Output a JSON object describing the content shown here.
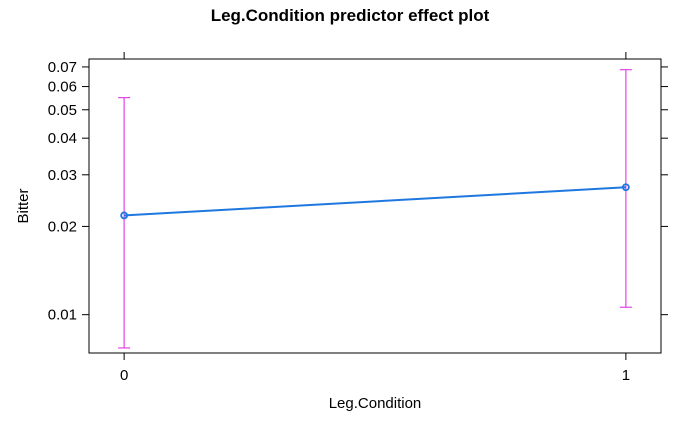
{
  "chart_data": {
    "type": "line",
    "title": "Leg.Condition predictor effect plot",
    "xlabel": "Leg.Condition",
    "ylabel": "Bitter",
    "x": [
      0,
      1
    ],
    "x_tick_labels": [
      "0",
      "1"
    ],
    "xlim": [
      -0.07,
      1.07
    ],
    "y_scale": "log",
    "ylim": [
      0.0074,
      0.0745
    ],
    "y_ticks": [
      0.01,
      0.02,
      0.03,
      0.04,
      0.05,
      0.06,
      0.07
    ],
    "y_tick_labels": [
      "0.01",
      "0.02",
      "0.03",
      "0.04",
      "0.05",
      "0.06",
      "0.07"
    ],
    "series": [
      {
        "values": [
          0.0218,
          0.0272
        ],
        "lower": [
          0.0077,
          0.0106
        ],
        "upper": [
          0.055,
          0.0685
        ]
      }
    ],
    "grid": false,
    "legend": "none",
    "colors": {
      "line": "#1f78e0",
      "ci": "#e642e6"
    }
  }
}
